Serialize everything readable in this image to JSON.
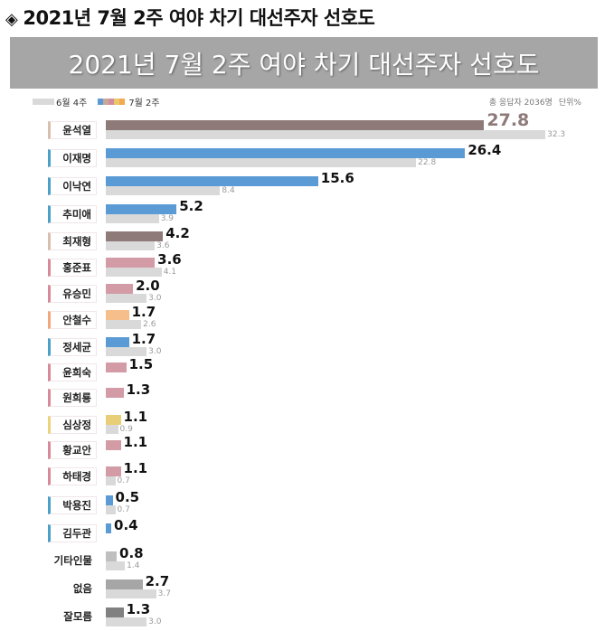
{
  "page_title": "2021년 7월 2주 여야 차기 대선주자 선호도",
  "title_bullet": "◈",
  "banner_title": "2021년 7월 2주 여야 차기 대선주자 선호도",
  "legend": {
    "prev_label": "6월 4주",
    "cur_label": "7월 2주",
    "prev_color": "#d9d9d9",
    "cur_colors": [
      "#5b9bd5",
      "#c8a89a",
      "#d28e9c",
      "#e8c86a",
      "#f3a94d"
    ]
  },
  "meta": {
    "respondents": "총 응답자 2036명",
    "unit": "단위%"
  },
  "colors": {
    "ppp": "#8f7a7a",
    "dp": "#5b9bd5",
    "pink": "#d29ba5",
    "orange": "#f6be8a",
    "yellow": "#e8cf77",
    "prev": "#d9d9d9",
    "other_light": "#bfbfbf",
    "none_mid": "#a6a6a6",
    "dontknow_dark": "#808080"
  },
  "chart_data": {
    "type": "bar",
    "orientation": "horizontal",
    "title": "2021년 7월 2주 여야 차기 대선주자 선호도",
    "xlabel": "",
    "ylabel": "",
    "unit": "%",
    "note": "총 응답자 2036명",
    "categories": [
      "윤석열",
      "이재명",
      "이낙연",
      "추미애",
      "최재형",
      "홍준표",
      "유승민",
      "안철수",
      "정세균",
      "윤희숙",
      "원희룡",
      "심상정",
      "황교안",
      "하태경",
      "박용진",
      "김두관",
      "기타인물",
      "없음",
      "잘모름"
    ],
    "series": [
      {
        "name": "7월 2주",
        "values": [
          27.8,
          26.4,
          15.6,
          5.2,
          4.2,
          3.6,
          2.0,
          1.7,
          1.7,
          1.5,
          1.3,
          1.1,
          1.1,
          1.1,
          0.5,
          0.4,
          0.8,
          2.7,
          1.3
        ]
      },
      {
        "name": "6월 4주",
        "values": [
          32.3,
          22.8,
          8.4,
          3.9,
          3.6,
          4.1,
          3.0,
          2.6,
          3.0,
          null,
          null,
          0.9,
          null,
          0.7,
          0.7,
          null,
          1.4,
          3.7,
          3.0
        ]
      }
    ],
    "legend_position": "top-left",
    "grid": false
  },
  "rows": [
    {
      "name": "윤석열",
      "cur": "27.8",
      "prev": "32.3",
      "cur_v": 27.8,
      "prev_v": 32.3,
      "color": "#8f7a7a",
      "edge": "#d9bfae",
      "boxed": true,
      "big": true
    },
    {
      "name": "이재명",
      "cur": "26.4",
      "prev": "22.8",
      "cur_v": 26.4,
      "prev_v": 22.8,
      "color": "#5b9bd5",
      "edge": "#4aa0c8",
      "boxed": true
    },
    {
      "name": "이낙연",
      "cur": "15.6",
      "prev": "8.4",
      "cur_v": 15.6,
      "prev_v": 8.4,
      "color": "#5b9bd5",
      "edge": "#4aa0c8",
      "boxed": true
    },
    {
      "name": "추미애",
      "cur": "5.2",
      "prev": "3.9",
      "cur_v": 5.2,
      "prev_v": 3.9,
      "color": "#5b9bd5",
      "edge": "#4aa0c8",
      "boxed": true
    },
    {
      "name": "최재형",
      "cur": "4.2",
      "prev": "3.6",
      "cur_v": 4.2,
      "prev_v": 3.6,
      "color": "#8f7a7a",
      "edge": "#d9bfae",
      "boxed": true
    },
    {
      "name": "홍준표",
      "cur": "3.6",
      "prev": "4.1",
      "cur_v": 3.6,
      "prev_v": 4.1,
      "color": "#d29ba5",
      "edge": "#d88a98",
      "boxed": true
    },
    {
      "name": "유승민",
      "cur": "2.0",
      "prev": "3.0",
      "cur_v": 2.0,
      "prev_v": 3.0,
      "color": "#d29ba5",
      "edge": "#d88a98",
      "boxed": true
    },
    {
      "name": "안철수",
      "cur": "1.7",
      "prev": "2.6",
      "cur_v": 1.7,
      "prev_v": 2.6,
      "color": "#f6be8a",
      "edge": "#f3a77a",
      "boxed": true
    },
    {
      "name": "정세균",
      "cur": "1.7",
      "prev": "3.0",
      "cur_v": 1.7,
      "prev_v": 3.0,
      "color": "#5b9bd5",
      "edge": "#4aa0c8",
      "boxed": true
    },
    {
      "name": "윤희숙",
      "cur": "1.5",
      "prev": null,
      "cur_v": 1.5,
      "prev_v": 0,
      "color": "#d29ba5",
      "edge": "#d88a98",
      "boxed": true
    },
    {
      "name": "원희룡",
      "cur": "1.3",
      "prev": null,
      "cur_v": 1.3,
      "prev_v": 0,
      "color": "#d29ba5",
      "edge": "#d88a98",
      "boxed": true
    },
    {
      "name": "심상정",
      "cur": "1.1",
      "prev": "0.9",
      "cur_v": 1.1,
      "prev_v": 0.9,
      "color": "#e8cf77",
      "edge": "#ecd27a",
      "boxed": true
    },
    {
      "name": "황교안",
      "cur": "1.1",
      "prev": null,
      "cur_v": 1.1,
      "prev_v": 0,
      "color": "#d29ba5",
      "edge": "#d88a98",
      "boxed": true
    },
    {
      "name": "하태경",
      "cur": "1.1",
      "prev": "0.7",
      "cur_v": 1.1,
      "prev_v": 0.7,
      "color": "#d29ba5",
      "edge": "#d88a98",
      "boxed": true
    },
    {
      "name": "박용진",
      "cur": "0.5",
      "prev": "0.7",
      "cur_v": 0.5,
      "prev_v": 0.7,
      "color": "#5b9bd5",
      "edge": "#4aa0c8",
      "boxed": true
    },
    {
      "name": "김두관",
      "cur": "0.4",
      "prev": null,
      "cur_v": 0.4,
      "prev_v": 0,
      "color": "#5b9bd5",
      "edge": "#4aa0c8",
      "boxed": true
    },
    {
      "name": "기타인물",
      "cur": "0.8",
      "prev": "1.4",
      "cur_v": 0.8,
      "prev_v": 1.4,
      "color": "#bfbfbf",
      "edge": null,
      "boxed": false
    },
    {
      "name": "없음",
      "cur": "2.7",
      "prev": "3.7",
      "cur_v": 2.7,
      "prev_v": 3.7,
      "color": "#a6a6a6",
      "edge": null,
      "boxed": false
    },
    {
      "name": "잘모름",
      "cur": "1.3",
      "prev": "3.0",
      "cur_v": 1.3,
      "prev_v": 3.0,
      "color": "#808080",
      "edge": null,
      "boxed": false
    }
  ]
}
